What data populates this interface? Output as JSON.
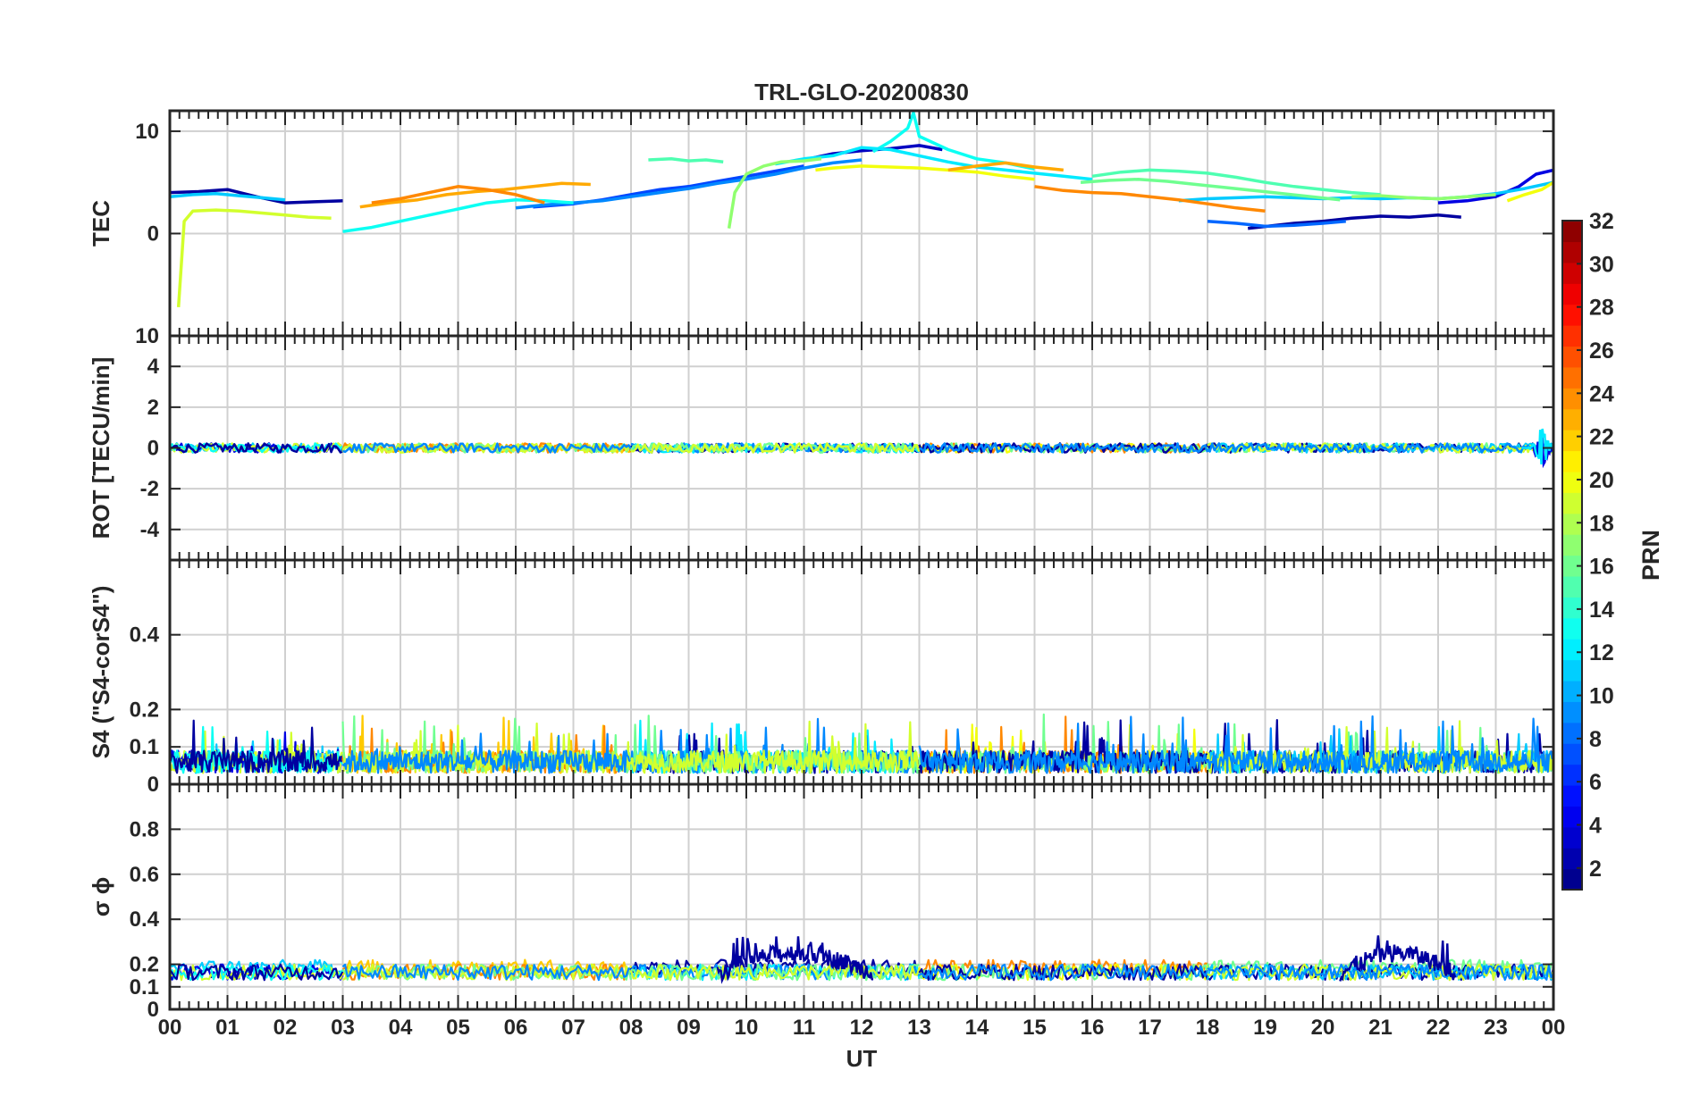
{
  "chart_data": {
    "type": "line",
    "title": "TRL-GLO-20200830",
    "xlabel": "UT",
    "x_tick_labels": [
      "00",
      "01",
      "02",
      "03",
      "04",
      "05",
      "06",
      "07",
      "08",
      "09",
      "10",
      "11",
      "12",
      "13",
      "14",
      "15",
      "16",
      "17",
      "18",
      "19",
      "20",
      "21",
      "22",
      "23",
      "00"
    ],
    "xlim": [
      0,
      24
    ],
    "grid": true,
    "panels": [
      {
        "name": "tec",
        "ylabel": "TEC",
        "ylim": [
          -10,
          12
        ],
        "yticks": [
          0,
          10
        ],
        "ytick_labels": [
          "0",
          "10"
        ],
        "overlap_tick_label": "10",
        "series": [
          {
            "prn": 2,
            "x": [
              0.0,
              0.5,
              1.0,
              1.5,
              2.0,
              2.5,
              3.0
            ],
            "y": [
              4.0,
              4.1,
              4.3,
              3.6,
              3.0,
              3.1,
              3.2
            ]
          },
          {
            "prn": 3,
            "x": [
              11.0,
              11.5,
              12.0,
              12.5,
              13.0,
              13.4
            ],
            "y": [
              7.2,
              7.8,
              8.1,
              8.3,
              8.6,
              8.2
            ]
          },
          {
            "prn": 2,
            "x": [
              18.7,
              19.5,
              20.0,
              20.5,
              21.0,
              21.5,
              22.0,
              22.4
            ],
            "y": [
              0.5,
              1.0,
              1.2,
              1.5,
              1.7,
              1.6,
              1.8,
              1.6
            ]
          },
          {
            "prn": 4,
            "x": [
              22.0,
              22.5,
              23.0,
              23.4,
              23.7,
              24.0
            ],
            "y": [
              3.0,
              3.2,
              3.6,
              4.6,
              5.8,
              6.2
            ]
          },
          {
            "prn": 7,
            "x": [
              6.3,
              7.0,
              7.5,
              8.0,
              8.5,
              9.0,
              9.5,
              10.0,
              10.5,
              11.0
            ],
            "y": [
              2.6,
              2.9,
              3.3,
              3.8,
              4.3,
              4.6,
              5.1,
              5.6,
              6.1,
              6.6
            ]
          },
          {
            "prn": 8,
            "x": [
              18.0,
              18.5,
              19.0,
              19.5,
              20.0,
              20.4
            ],
            "y": [
              1.2,
              1.0,
              0.7,
              0.8,
              1.0,
              1.2
            ]
          },
          {
            "prn": 9,
            "x": [
              6.0,
              6.5,
              7.0,
              7.5,
              8.0,
              8.5,
              9.0,
              9.5,
              10.0,
              10.5,
              11.0,
              11.5,
              12.0
            ],
            "y": [
              2.5,
              2.8,
              3.0,
              3.2,
              3.6,
              4.0,
              4.4,
              4.9,
              5.3,
              5.8,
              6.4,
              6.9,
              7.2
            ]
          },
          {
            "prn": 11,
            "x": [
              0.0,
              0.4,
              0.8,
              1.2,
              1.6,
              2.0
            ],
            "y": [
              3.6,
              3.8,
              3.9,
              3.7,
              3.5,
              3.3
            ]
          },
          {
            "prn": 13,
            "x": [
              12.2,
              12.5,
              12.8,
              12.9,
              13.0,
              13.5,
              14.0,
              14.5,
              15.0
            ],
            "y": [
              8.0,
              9.0,
              10.3,
              11.8,
              9.5,
              8.2,
              7.3,
              6.9,
              6.3
            ]
          },
          {
            "prn": 12,
            "x": [
              10.5,
              11.0,
              11.5,
              12.0,
              12.5,
              13.0,
              13.5,
              14.0,
              14.5,
              15.0,
              15.5,
              16.0
            ],
            "y": [
              6.8,
              7.3,
              7.6,
              8.4,
              8.2,
              7.6,
              7.0,
              6.5,
              6.2,
              5.9,
              5.6,
              5.3
            ]
          },
          {
            "prn": 13,
            "x": [
              3.0,
              3.5,
              4.0,
              4.5,
              5.0,
              5.5,
              6.0,
              6.5,
              7.0
            ],
            "y": [
              0.2,
              0.6,
              1.2,
              1.8,
              2.4,
              3.0,
              3.3,
              3.2,
              3.0
            ]
          },
          {
            "prn": 11,
            "x": [
              17.5,
              18.0,
              18.5,
              19.0,
              19.5,
              20.0,
              20.5,
              21.0,
              21.5,
              22.0,
              22.5,
              23.0,
              23.5,
              24.0
            ],
            "y": [
              3.2,
              3.4,
              3.5,
              3.6,
              3.5,
              3.4,
              3.5,
              3.4,
              3.5,
              3.4,
              3.6,
              3.9,
              4.4,
              5.0
            ]
          },
          {
            "prn": 15,
            "x": [
              8.3,
              8.7,
              9.0,
              9.3,
              9.6
            ],
            "y": [
              7.2,
              7.3,
              7.1,
              7.2,
              7.0
            ]
          },
          {
            "prn": 15,
            "x": [
              16.0,
              16.5,
              17.0,
              17.5,
              18.0,
              18.5,
              19.0,
              19.5,
              20.0,
              20.5,
              21.0
            ],
            "y": [
              5.6,
              6.0,
              6.2,
              6.1,
              5.9,
              5.5,
              5.0,
              4.6,
              4.3,
              4.0,
              3.8
            ]
          },
          {
            "prn": 17,
            "x": [
              9.7,
              9.8,
              10.0,
              10.3,
              10.6,
              11.0,
              11.3
            ],
            "y": [
              0.5,
              4.0,
              5.8,
              6.6,
              7.0,
              7.1,
              7.3
            ]
          },
          {
            "prn": 16,
            "x": [
              15.8,
              16.3,
              16.8,
              17.3,
              17.8,
              18.3,
              18.8,
              19.3,
              19.8,
              20.3
            ],
            "y": [
              5.0,
              5.2,
              5.3,
              5.1,
              4.8,
              4.5,
              4.2,
              3.9,
              3.6,
              3.3
            ]
          },
          {
            "prn": 17,
            "x": [
              20.5,
              21.0,
              21.5,
              22.0,
              22.5,
              23.0
            ],
            "y": [
              3.6,
              3.7,
              3.5,
              3.4,
              3.6,
              3.8
            ]
          },
          {
            "prn": 19,
            "x": [
              0.15,
              0.25,
              0.4,
              0.8,
              1.2,
              1.6,
              2.0,
              2.4,
              2.8
            ],
            "y": [
              -7.2,
              1.2,
              2.2,
              2.3,
              2.2,
              2.0,
              1.8,
              1.6,
              1.5
            ]
          },
          {
            "prn": 20,
            "x": [
              11.2,
              11.5,
              12.0,
              12.5,
              13.0,
              13.5,
              14.0,
              14.5,
              15.0
            ],
            "y": [
              6.2,
              6.4,
              6.6,
              6.5,
              6.4,
              6.2,
              6.0,
              5.6,
              5.3
            ]
          },
          {
            "prn": 20,
            "x": [
              23.2,
              23.5,
              23.8,
              24.0
            ],
            "y": [
              3.2,
              3.8,
              4.3,
              5.0
            ]
          },
          {
            "prn": 23,
            "x": [
              3.3,
              3.8,
              4.3,
              4.8,
              5.3,
              5.8,
              6.3,
              6.8,
              7.3
            ],
            "y": [
              2.6,
              3.0,
              3.3,
              3.8,
              4.1,
              4.3,
              4.6,
              4.9,
              4.8
            ]
          },
          {
            "prn": 23,
            "x": [
              13.5,
              14.0,
              14.5,
              15.0,
              15.5
            ],
            "y": [
              6.2,
              6.6,
              6.9,
              6.5,
              6.2
            ]
          },
          {
            "prn": 24,
            "x": [
              15.0,
              15.5,
              16.0,
              16.5,
              17.0,
              17.5,
              18.0,
              18.5,
              19.0
            ],
            "y": [
              4.6,
              4.2,
              4.0,
              3.9,
              3.6,
              3.3,
              2.9,
              2.5,
              2.2
            ]
          },
          {
            "prn": 24,
            "x": [
              3.5,
              4.0,
              4.5,
              5.0,
              5.5,
              6.0,
              6.5
            ],
            "y": [
              3.0,
              3.4,
              4.0,
              4.6,
              4.3,
              3.8,
              3.0
            ]
          }
        ]
      },
      {
        "name": "rot",
        "ylabel": "ROT [TECU/min]",
        "ylim": [
          -5.5,
          5.5
        ],
        "yticks": [
          -4,
          -2,
          0,
          2,
          4
        ],
        "ytick_labels": [
          "-4",
          "-2",
          "0",
          "2",
          "4"
        ],
        "spike": {
          "x": 23.8,
          "prns": [
            4,
            12
          ],
          "range": [
            -0.9,
            1.0
          ]
        }
      },
      {
        "name": "s4",
        "ylabel": "S4 (\"S4-corS4\")",
        "ylim": [
          0,
          0.6
        ],
        "yticks": [
          0,
          0.1,
          0.2,
          0.4
        ],
        "ytick_labels": [
          "0",
          "0.1",
          "0.2",
          "0.4"
        ]
      },
      {
        "name": "sigma_phi",
        "ylabel": "σ ϕ",
        "ylim": [
          0,
          1
        ],
        "yticks": [
          0,
          0.1,
          0.2,
          0.4,
          0.6,
          0.8
        ],
        "ytick_labels": [
          "0",
          "0.1",
          "0.2",
          "0.4",
          "0.6",
          "0.8"
        ],
        "enhancement": {
          "prn": 2,
          "intervals": [
            [
              9.5,
              12.2
            ],
            [
              20.3,
              22.3
            ]
          ],
          "peak": 0.33
        }
      }
    ],
    "colorbar": {
      "label": "PRN",
      "colormap": "jet",
      "range": [
        1,
        32
      ],
      "ticks": [
        2,
        4,
        6,
        8,
        10,
        12,
        14,
        16,
        18,
        20,
        22,
        24,
        26,
        28,
        30,
        32
      ],
      "tick_labels": [
        "2",
        "4",
        "6",
        "8",
        "10",
        "12",
        "14",
        "16",
        "18",
        "20",
        "22",
        "24",
        "26",
        "28",
        "30",
        "32"
      ]
    }
  }
}
